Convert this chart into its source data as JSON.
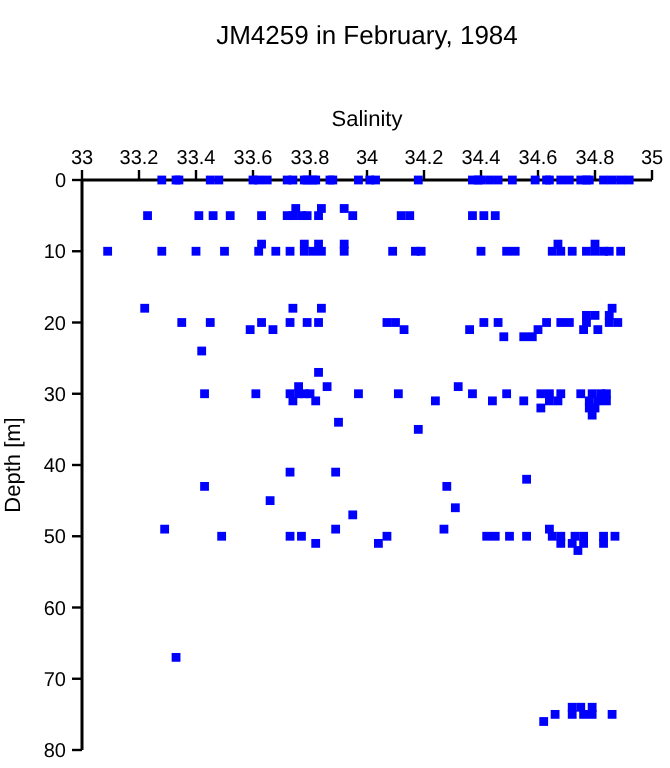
{
  "chart_data": {
    "type": "scatter",
    "title": "JM4259 in February, 1984",
    "xlabel": "Salinity",
    "ylabel": "Depth [m]",
    "xlim": [
      33,
      35
    ],
    "xticks": [
      33,
      33.2,
      33.4,
      33.6,
      33.8,
      34,
      34.2,
      34.4,
      34.6,
      34.8,
      35
    ],
    "ylim": [
      80,
      0
    ],
    "yticks": [
      0,
      10,
      20,
      30,
      40,
      50,
      60,
      70,
      80
    ],
    "grid": false,
    "marker": "square",
    "series": [
      {
        "color": "#0000ff",
        "x": [
          33.28,
          33.33,
          33.34,
          33.45,
          33.48,
          33.6,
          33.62,
          33.65,
          33.72,
          33.74
        ],
        "values": [
          0,
          0,
          0,
          0,
          0,
          0,
          0,
          0,
          0,
          0
        ]
      },
      {
        "color": "#0000ff",
        "x": [
          33.78,
          33.79,
          33.81,
          33.82,
          33.87,
          33.88,
          33.97,
          34.01,
          34.03,
          34.18
        ],
        "values": [
          0,
          0,
          0,
          0,
          0,
          0,
          0,
          0,
          0,
          0
        ]
      },
      {
        "color": "#0000ff",
        "x": [
          34.37,
          34.39,
          34.4,
          34.43,
          34.46,
          34.51,
          34.59,
          34.63,
          34.64,
          34.68
        ],
        "values": [
          0,
          0,
          0,
          0,
          0,
          0,
          0,
          0,
          0,
          0
        ]
      },
      {
        "color": "#0000ff",
        "x": [
          34.71,
          34.75,
          34.77,
          34.78,
          34.83,
          34.86,
          34.89,
          34.92,
          33.75,
          33.84
        ],
        "values": [
          0,
          0,
          0,
          0,
          0,
          0,
          0,
          0,
          4,
          4
        ]
      },
      {
        "color": "#0000ff",
        "x": [
          33.92,
          33.23,
          33.41,
          33.46,
          33.52,
          33.63,
          33.72,
          33.74
        ],
        "values": [
          4,
          5,
          5,
          5,
          5,
          5,
          5,
          5
        ]
      },
      {
        "color": "#0000ff",
        "x": [
          33.77,
          33.79,
          33.83,
          33.95,
          34.12,
          34.15,
          34.37,
          34.41,
          34.45,
          33.63
        ],
        "values": [
          5,
          5,
          5,
          5,
          5,
          5,
          5,
          5,
          5,
          9
        ]
      },
      {
        "color": "#0000ff",
        "x": [
          33.78,
          33.83,
          33.92,
          34.67,
          34.8,
          33.09,
          33.28,
          33.4,
          33.5
        ],
        "values": [
          9,
          9,
          9,
          9,
          9,
          10,
          10,
          10,
          10
        ]
      },
      {
        "color": "#0000ff",
        "x": [
          33.62,
          33.68,
          33.73,
          33.78,
          33.81,
          33.84,
          33.92,
          34.09,
          34.17
        ],
        "values": [
          10,
          10,
          10,
          10,
          10,
          10,
          10,
          10,
          10
        ]
      },
      {
        "color": "#0000ff",
        "x": [
          34.19,
          34.4,
          34.49,
          34.52,
          34.65,
          34.68,
          34.72,
          34.77,
          34.8,
          34.83
        ],
        "values": [
          10,
          10,
          10,
          10,
          10,
          10,
          10,
          10,
          10,
          10
        ]
      },
      {
        "color": "#0000ff",
        "x": [
          34.85,
          34.89,
          33.22,
          33.74,
          33.84,
          34.86,
          34.77,
          34.8,
          34.85,
          33.35
        ],
        "values": [
          10,
          10,
          18,
          18,
          18,
          18,
          19,
          19,
          19,
          20
        ]
      },
      {
        "color": "#0000ff",
        "x": [
          33.45,
          33.63,
          33.73,
          33.79,
          33.83,
          34.07,
          34.1,
          34.41,
          34.46
        ],
        "values": [
          20,
          20,
          20,
          20,
          20,
          20,
          20,
          20,
          20
        ]
      },
      {
        "color": "#0000ff",
        "x": [
          34.63,
          34.68,
          34.71,
          34.77,
          34.85,
          34.88,
          33.59,
          33.67,
          34.13,
          34.36
        ],
        "values": [
          20,
          20,
          20,
          20,
          20,
          20,
          21,
          21,
          21,
          21
        ]
      },
      {
        "color": "#0000ff",
        "x": [
          34.6,
          34.76,
          34.81,
          34.48,
          34.55,
          34.58,
          33.42,
          33.83,
          33.76,
          33.86
        ],
        "values": [
          21,
          21,
          21,
          22,
          22,
          22,
          24,
          27,
          29,
          29
        ]
      },
      {
        "color": "#0000ff",
        "x": [
          34.32,
          33.43,
          33.61,
          33.73,
          33.76,
          33.78,
          33.8,
          33.97,
          34.11,
          34.37
        ],
        "values": [
          29,
          30,
          30,
          30,
          30,
          30,
          30,
          30,
          30,
          30
        ]
      },
      {
        "color": "#0000ff",
        "x": [
          34.49,
          34.61,
          34.64,
          34.68,
          34.75,
          34.79,
          34.82,
          34.84,
          33.74,
          33.82
        ],
        "values": [
          30,
          30,
          30,
          30,
          30,
          30,
          30,
          30,
          31,
          31
        ]
      },
      {
        "color": "#0000ff",
        "x": [
          34.24,
          34.44,
          34.55,
          34.64,
          34.67,
          34.78,
          34.81,
          34.84,
          34.61,
          34.78
        ],
        "values": [
          31,
          31,
          31,
          31,
          31,
          31,
          31,
          31,
          32,
          32
        ]
      },
      {
        "color": "#0000ff",
        "x": [
          34.8,
          34.79,
          33.9,
          34.18,
          33.73,
          33.89,
          33.43,
          33.66,
          33.95,
          34.56
        ],
        "values": [
          32,
          33,
          34,
          35,
          41,
          41,
          43,
          45,
          47,
          42
        ]
      },
      {
        "color": "#0000ff",
        "x": [
          34.28,
          34.31,
          33.29,
          33.89,
          34.27,
          34.64,
          33.49,
          33.73,
          33.77,
          34.07
        ],
        "values": [
          43,
          46,
          49,
          49,
          49,
          49,
          50,
          50,
          50,
          50
        ]
      },
      {
        "color": "#0000ff",
        "x": [
          34.42,
          34.45,
          34.5,
          34.56,
          34.65,
          34.68,
          34.73,
          34.76,
          34.83
        ],
        "values": [
          50,
          50,
          50,
          50,
          50,
          50,
          50,
          50,
          50
        ]
      },
      {
        "color": "#0000ff",
        "x": [
          34.87,
          33.82,
          34.04,
          34.68,
          34.72,
          34.76,
          34.83,
          34.74,
          33.33,
          34.72
        ],
        "values": [
          50,
          51,
          51,
          51,
          51,
          51,
          51,
          52,
          67,
          74
        ]
      },
      {
        "color": "#0000ff",
        "x": [
          34.75,
          34.79,
          34.66,
          34.72,
          34.76,
          34.79,
          34.86,
          34.62
        ],
        "values": [
          74,
          74,
          75,
          75,
          75,
          75,
          75,
          76
        ]
      }
    ]
  }
}
